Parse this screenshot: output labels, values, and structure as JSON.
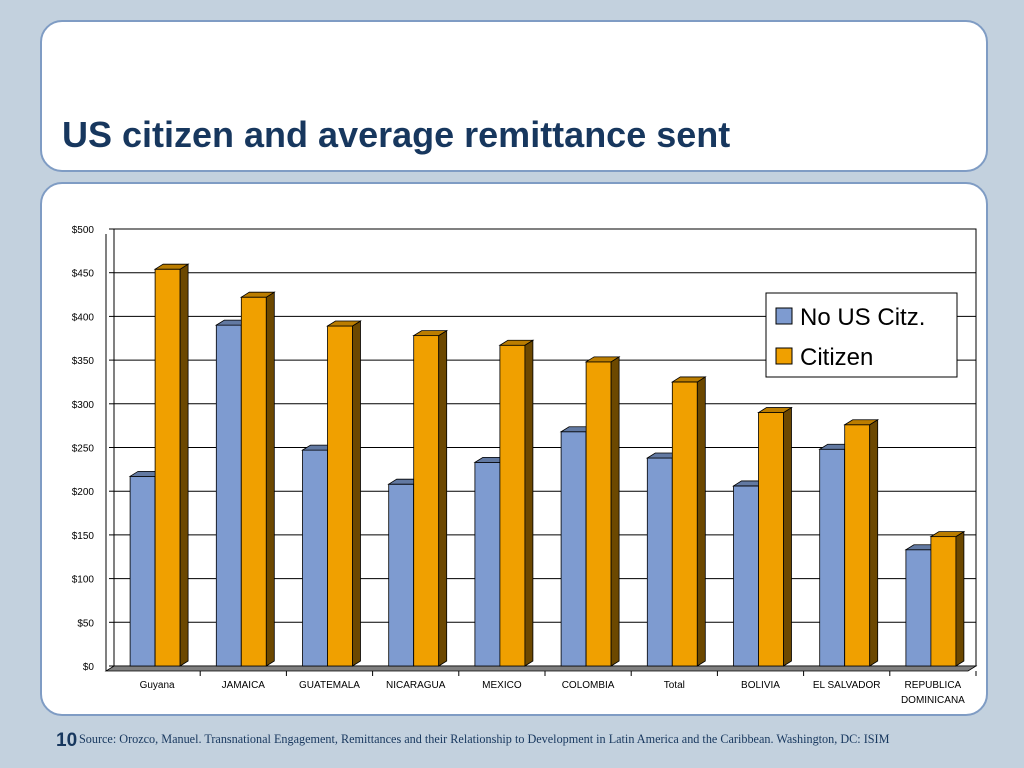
{
  "slide": {
    "title": "US citizen and average remittance sent",
    "page_number": "10",
    "source": "Source: Orozco, Manuel. Transnational Engagement, Remittances and their Relationship to Development in Latin America and the Caribbean. Washington, DC: ISIM"
  },
  "colors": {
    "series_no_citizen": "#7e9bd0",
    "series_citizen": "#f0a000",
    "title": "#17375e",
    "panel_border": "#7f9cc4",
    "background": "#c3d1de"
  },
  "chart_data": {
    "type": "bar",
    "style": "3d-clustered-column",
    "title": "",
    "xlabel": "",
    "ylabel": "",
    "ylim": [
      0,
      500
    ],
    "y_ticks": [
      "$0",
      "$50",
      "$100",
      "$150",
      "$200",
      "$250",
      "$300",
      "$350",
      "$400",
      "$450",
      "$500"
    ],
    "grid": true,
    "legend_position": "right",
    "categories": [
      [
        "Guyana"
      ],
      [
        "JAMAICA"
      ],
      [
        "GUATEMALA"
      ],
      [
        "NICARAGUA"
      ],
      [
        "MEXICO"
      ],
      [
        "COLOMBIA"
      ],
      [
        "Total"
      ],
      [
        "BOLIVIA"
      ],
      [
        "EL SALVADOR"
      ],
      [
        "REPUBLICA",
        "DOMINICANA"
      ]
    ],
    "series": [
      {
        "name": "No US Citz.",
        "values": [
          217,
          390,
          247,
          208,
          233,
          268,
          238,
          206,
          248,
          133
        ]
      },
      {
        "name": "Citizen",
        "values": [
          454,
          422,
          389,
          378,
          367,
          348,
          325,
          290,
          276,
          148
        ]
      }
    ]
  }
}
